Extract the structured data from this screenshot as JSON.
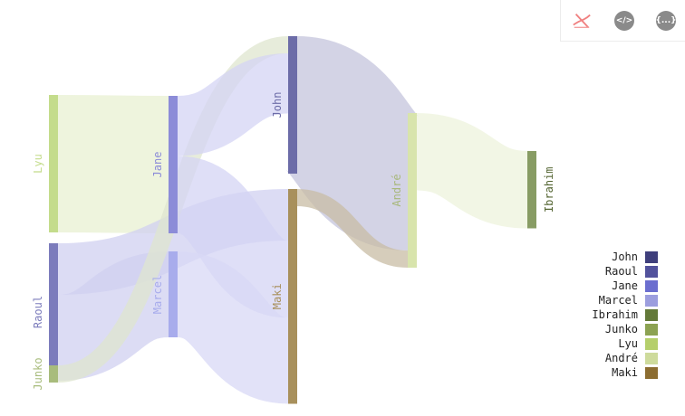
{
  "toolbar": {
    "reset_icon": "crossed-out-line-icon",
    "code_label": "</>",
    "data_label": "{...}"
  },
  "chart_data": {
    "type": "sankey",
    "nodes": [
      {
        "name": "Lyu",
        "color": "#c4dc8c"
      },
      {
        "name": "Raoul",
        "color": "#7c7cbc"
      },
      {
        "name": "Junko",
        "color": "#a8bc7c"
      },
      {
        "name": "Jane",
        "color": "#8c8cd8"
      },
      {
        "name": "Marcel",
        "color": "#a8acec"
      },
      {
        "name": "John",
        "color": "#6c6ca8"
      },
      {
        "name": "Maki",
        "color": "#a8905c"
      },
      {
        "name": "André",
        "color": "#d8e4ac"
      },
      {
        "name": "Ibrahim",
        "color": "#889c64"
      }
    ],
    "links": [
      {
        "source": "Lyu",
        "target": "Jane",
        "value": 8
      },
      {
        "source": "Raoul",
        "target": "Maki",
        "value": 3
      },
      {
        "source": "Raoul",
        "target": "Marcel",
        "value": 5
      },
      {
        "source": "Junko",
        "target": "John",
        "value": 1
      },
      {
        "source": "Jane",
        "target": "John",
        "value": 3.5
      },
      {
        "source": "Jane",
        "target": "Maki",
        "value": 4.5
      },
      {
        "source": "Marcel",
        "target": "Maki",
        "value": 5
      },
      {
        "source": "John",
        "target": "André",
        "value": 8
      },
      {
        "source": "Maki",
        "target": "André",
        "value": 1
      },
      {
        "source": "André",
        "target": "Ibrahim",
        "value": 4.5
      }
    ],
    "legend": [
      {
        "name": "John",
        "color": "#3f3f7c"
      },
      {
        "name": "Raoul",
        "color": "#52529c"
      },
      {
        "name": "Jane",
        "color": "#6b6ecf"
      },
      {
        "name": "Marcel",
        "color": "#9c9ede"
      },
      {
        "name": "Ibrahim",
        "color": "#637939"
      },
      {
        "name": "Junko",
        "color": "#8ca252"
      },
      {
        "name": "Lyu",
        "color": "#b5cf6b"
      },
      {
        "name": "André",
        "color": "#cedb9c"
      },
      {
        "name": "Maki",
        "color": "#8c6d31"
      }
    ],
    "legend_position": "bottom-right"
  }
}
